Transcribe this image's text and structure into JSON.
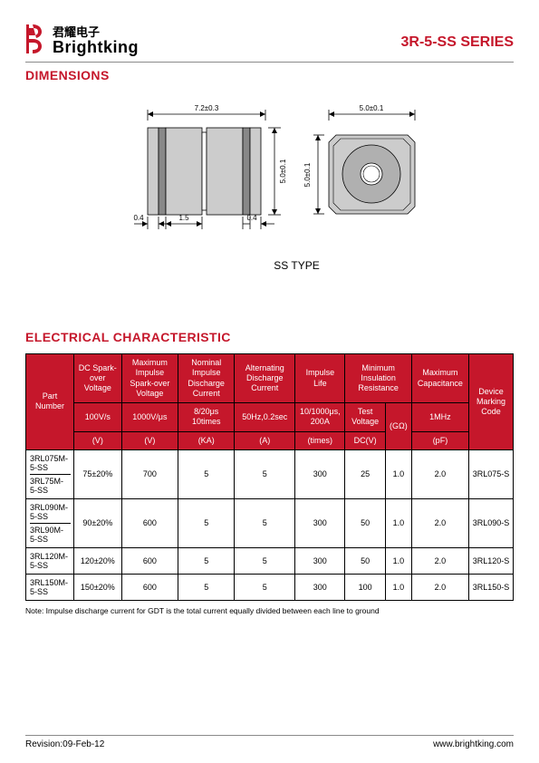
{
  "header": {
    "brand_cn": "君耀电子",
    "brand_en": "Brightking",
    "series": "3R-5-SS SERIES"
  },
  "section": {
    "dimensions_title": "DIMENSIONS",
    "elec_title": "ELECTRICAL CHARACTERISTIC",
    "type_label": "SS  TYPE"
  },
  "diagram": {
    "top_dim": "7.2±0.3",
    "right_dim": "5.0±0.1",
    "side_dim": "5.0±0.1",
    "spacer1": "0.4",
    "spacer2": "1.5",
    "spacer3": "0.4",
    "stroke_color": "#000000",
    "fill_light": "#cccccc",
    "fill_mid": "#b0b0b0",
    "font_size": 8
  },
  "table": {
    "headers": {
      "part_number": "Part Number",
      "dc_spark": "DC\nSpark-over\nVoltage",
      "max_impulse_spark": "Maximum\nImpulse\nSpark-over\nVoltage",
      "nominal_impulse": "Nominal\nImpulse\nDischarge\nCurrent",
      "alt_discharge": "Alternating\nDischarge\nCurrent",
      "impulse_life": "Impulse\nLife",
      "min_insulation": "Minimum\nInsulation\nResistance",
      "max_cap": "Maximum\nCapacitance",
      "device_marking": "Device\nMarking\nCode",
      "cond_100vs": "100V/s",
      "cond_1000vus": "1000V/μs",
      "cond_820_10": "8/20μs\n10times",
      "cond_50hz": "50Hz,0.2sec",
      "cond_10_1000": "10/1000μs,\n200A",
      "cond_test_v": "Test\nVoltage",
      "cond_gohm": "(GΩ)",
      "cond_1mhz": "1MHz",
      "unit_v1": "(V)",
      "unit_v2": "(V)",
      "unit_ka": "(KA)",
      "unit_a": "(A)",
      "unit_times": "(times)",
      "unit_dcv": "DC(V)",
      "unit_pf": "(pF)"
    },
    "rows": [
      {
        "pn_a": "3RL075M-5-SS",
        "pn_b": "3RL75M-5-SS",
        "v1": "75±20%",
        "v2": "700",
        "ka": "5",
        "a": "5",
        "times": "300",
        "dcv": "25",
        "gohm": "1.0",
        "pf": "2.0",
        "code": "3RL075-S"
      },
      {
        "pn_a": "3RL090M-5-SS",
        "pn_b": "3RL90M-5-SS",
        "v1": "90±20%",
        "v2": "600",
        "ka": "5",
        "a": "5",
        "times": "300",
        "dcv": "50",
        "gohm": "1.0",
        "pf": "2.0",
        "code": "3RL090-S"
      },
      {
        "pn_a": "3RL120M-5-SS",
        "pn_b": "",
        "v1": "120±20%",
        "v2": "600",
        "ka": "5",
        "a": "5",
        "times": "300",
        "dcv": "50",
        "gohm": "1.0",
        "pf": "2.0",
        "code": "3RL120-S"
      },
      {
        "pn_a": "3RL150M-5-SS",
        "pn_b": "",
        "v1": "150±20%",
        "v2": "600",
        "ka": "5",
        "a": "5",
        "times": "300",
        "dcv": "100",
        "gohm": "1.0",
        "pf": "2.0",
        "code": "3RL150-S"
      }
    ],
    "header_bg": "#c5172b",
    "header_fg": "#ffffff"
  },
  "note": "Note:  Impulse discharge current for GDT is the total current equally divided between each line to ground",
  "footer": {
    "revision": "Revision:09-Feb-12",
    "url": "www.brightking.com"
  }
}
